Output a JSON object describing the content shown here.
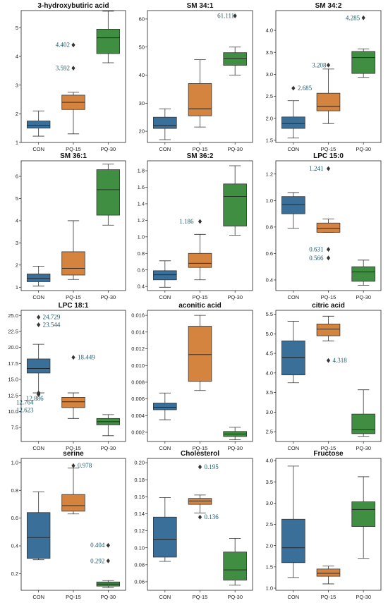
{
  "colors": {
    "CON": "#3a6f99",
    "PQ-15": "#d5843f",
    "PQ-30": "#3f8e41",
    "annotation": "#1f5a68"
  },
  "chart_data": [
    {
      "type": "box",
      "title": "3-hydroxybutiric acid",
      "categories": [
        "CON",
        "PQ-15",
        "PQ-30"
      ],
      "ylim": [
        1.0,
        5.6
      ],
      "yticks": [
        "1",
        "2",
        "3",
        "4",
        "5"
      ],
      "boxes": [
        {
          "min": 1.22,
          "q1": 1.5,
          "median": 1.6,
          "q3": 1.75,
          "max": 2.1
        },
        {
          "min": 1.3,
          "q1": 2.15,
          "median": 2.4,
          "q3": 2.65,
          "max": 2.75
        },
        {
          "min": 3.78,
          "q1": 4.1,
          "median": 4.65,
          "q3": 4.95,
          "max": 5.58
        }
      ],
      "outliers": [
        {
          "category": "PQ-15",
          "value": 4.402,
          "label": "4.402"
        },
        {
          "category": "PQ-15",
          "value": 3.592,
          "label": "3.592"
        }
      ]
    },
    {
      "type": "box",
      "title": "SM 34:1",
      "categories": [
        "CON",
        "PQ-15",
        "PQ-30"
      ],
      "ylim": [
        16,
        63
      ],
      "yticks": [
        "20",
        "30",
        "40",
        "50",
        "60"
      ],
      "boxes": [
        {
          "min": 17.0,
          "q1": 21.0,
          "median": 22.0,
          "q3": 25.0,
          "max": 28.0
        },
        {
          "min": 21.5,
          "q1": 25.5,
          "median": 28.0,
          "q3": 37.0,
          "max": 45.5
        },
        {
          "min": 40.0,
          "q1": 43.5,
          "median": 46.0,
          "q3": 48.0,
          "max": 50.0
        }
      ],
      "outliers": [
        {
          "category": "PQ-30",
          "value": 61.111,
          "label": "61.111"
        }
      ]
    },
    {
      "type": "box",
      "title": "SM 34:2",
      "categories": [
        "CON",
        "PQ-15",
        "PQ-30"
      ],
      "ylim": [
        1.45,
        4.45
      ],
      "yticks": [
        "1.5",
        "2.0",
        "2.5",
        "3.0",
        "3.5",
        "4.0"
      ],
      "boxes": [
        {
          "min": 1.55,
          "q1": 1.77,
          "median": 1.88,
          "q3": 2.03,
          "max": 2.4
        },
        {
          "min": 1.88,
          "q1": 2.17,
          "median": 2.27,
          "q3": 2.57,
          "max": 3.12
        },
        {
          "min": 2.93,
          "q1": 3.02,
          "median": 3.38,
          "q3": 3.52,
          "max": 3.58
        }
      ],
      "outliers": [
        {
          "category": "CON",
          "value": 2.685,
          "label": "2.685"
        },
        {
          "category": "PQ-15",
          "value": 3.208,
          "label": "3.208"
        },
        {
          "category": "PQ-30",
          "value": 4.285,
          "label": "4.285"
        }
      ]
    },
    {
      "type": "box",
      "title": "SM 36:1",
      "categories": [
        "CON",
        "PQ-15",
        "PQ-30"
      ],
      "ylim": [
        0.85,
        6.7
      ],
      "yticks": [
        "1",
        "2",
        "3",
        "4",
        "5",
        "6"
      ],
      "boxes": [
        {
          "min": 1.05,
          "q1": 1.25,
          "median": 1.4,
          "q3": 1.6,
          "max": 1.95
        },
        {
          "min": 1.35,
          "q1": 1.55,
          "median": 1.85,
          "q3": 2.6,
          "max": 4.0
        },
        {
          "min": 3.8,
          "q1": 4.25,
          "median": 5.4,
          "q3": 6.3,
          "max": 6.55
        }
      ],
      "outliers": []
    },
    {
      "type": "box",
      "title": "SM 36:2",
      "categories": [
        "CON",
        "PQ-15",
        "PQ-30"
      ],
      "ylim": [
        0.35,
        1.92
      ],
      "yticks": [
        "0.4",
        "0.6",
        "0.8",
        "1.0",
        "1.2",
        "1.4",
        "1.6",
        "1.8"
      ],
      "boxes": [
        {
          "min": 0.39,
          "q1": 0.48,
          "median": 0.54,
          "q3": 0.59,
          "max": 0.71
        },
        {
          "min": 0.48,
          "q1": 0.63,
          "median": 0.68,
          "q3": 0.8,
          "max": 1.03
        },
        {
          "min": 1.02,
          "q1": 1.13,
          "median": 1.49,
          "q3": 1.64,
          "max": 1.86
        }
      ],
      "outliers": [
        {
          "category": "PQ-15",
          "value": 1.186,
          "label": "1.186"
        }
      ]
    },
    {
      "type": "box",
      "title": "LPC 15:0",
      "categories": [
        "CON",
        "PQ-15",
        "PQ-30"
      ],
      "ylim": [
        0.32,
        1.3
      ],
      "yticks": [
        "0.4",
        "0.6",
        "0.8",
        "1.0",
        "1.2"
      ],
      "boxes": [
        {
          "min": 0.79,
          "q1": 0.9,
          "median": 0.97,
          "q3": 1.03,
          "max": 1.06
        },
        {
          "min": 0.76,
          "q1": 0.76,
          "median": 0.79,
          "q3": 0.83,
          "max": 0.86
        },
        {
          "min": 0.36,
          "q1": 0.39,
          "median": 0.46,
          "q3": 0.5,
          "max": 0.55
        }
      ],
      "outliers": [
        {
          "category": "PQ-15",
          "value": 1.241,
          "label": "1.241"
        },
        {
          "category": "PQ-15",
          "value": 0.631,
          "label": "0.631"
        },
        {
          "category": "PQ-15",
          "value": 0.566,
          "label": "0.566"
        }
      ]
    },
    {
      "type": "box",
      "title": "LPC 18:1",
      "categories": [
        "CON",
        "PQ-15",
        "PQ-30"
      ],
      "ylim": [
        5.3,
        25.8
      ],
      "yticks": [
        "7.5",
        "10.0",
        "12.5",
        "15.0",
        "17.5",
        "20.0",
        "22.5",
        "25.0"
      ],
      "boxes": [
        {
          "min": 12.9,
          "q1": 16.0,
          "median": 16.7,
          "q3": 18.2,
          "max": 20.5
        },
        {
          "min": 8.9,
          "q1": 10.6,
          "median": 11.5,
          "q3": 12.2,
          "max": 12.9
        },
        {
          "min": 6.2,
          "q1": 7.9,
          "median": 8.4,
          "q3": 8.9,
          "max": 9.5
        }
      ],
      "outliers": [
        {
          "category": "CON",
          "value": 24.729,
          "label": "24.729"
        },
        {
          "category": "CON",
          "value": 23.544,
          "label": "23.544"
        },
        {
          "category": "PQ-15",
          "value": 18.449,
          "label": "18.449"
        },
        {
          "category": "CON",
          "value": 12.886,
          "label": "12.886"
        },
        {
          "category": "CON",
          "value": 12.764,
          "label": "12.764"
        },
        {
          "category": "CON",
          "value": 12.623,
          "label": "12.623"
        }
      ]
    },
    {
      "type": "box",
      "title": "aconitic acid",
      "categories": [
        "CON",
        "PQ-15",
        "PQ-30"
      ],
      "ylim": [
        0.0009,
        0.0166
      ],
      "yticks": [
        "0.002",
        "0.004",
        "0.006",
        "0.008",
        "0.010",
        "0.012",
        "0.014",
        "0.016"
      ],
      "boxes": [
        {
          "min": 0.0035,
          "q1": 0.0047,
          "median": 0.005,
          "q3": 0.0055,
          "max": 0.0067
        },
        {
          "min": 0.007,
          "q1": 0.0081,
          "median": 0.0113,
          "q3": 0.0147,
          "max": 0.016
        },
        {
          "min": 0.0011,
          "q1": 0.0015,
          "median": 0.0018,
          "q3": 0.0021,
          "max": 0.0026
        }
      ],
      "outliers": []
    },
    {
      "type": "box",
      "title": "citric acid",
      "categories": [
        "CON",
        "PQ-15",
        "PQ-30"
      ],
      "ylim": [
        2.25,
        5.6
      ],
      "yticks": [
        "2.5",
        "3.0",
        "3.5",
        "4.0",
        "4.5",
        "5.0",
        "5.5"
      ],
      "boxes": [
        {
          "min": 3.75,
          "q1": 3.95,
          "median": 4.4,
          "q3": 4.82,
          "max": 5.32
        },
        {
          "min": 4.82,
          "q1": 4.95,
          "median": 5.12,
          "q3": 5.25,
          "max": 5.45
        },
        {
          "min": 2.38,
          "q1": 2.45,
          "median": 2.55,
          "q3": 2.95,
          "max": 3.57
        }
      ],
      "outliers": [
        {
          "category": "PQ-15",
          "value": 4.318,
          "label": "4.318"
        }
      ]
    },
    {
      "type": "box",
      "title": "serine",
      "categories": [
        "CON",
        "PQ-15",
        "PQ-30"
      ],
      "ylim": [
        0.08,
        1.03
      ],
      "yticks": [
        "0.2",
        "0.4",
        "0.6",
        "0.8",
        "1.0"
      ],
      "boxes": [
        {
          "min": 0.3,
          "q1": 0.31,
          "median": 0.46,
          "q3": 0.64,
          "max": 0.79
        },
        {
          "min": 0.63,
          "q1": 0.65,
          "median": 0.69,
          "q3": 0.77,
          "max": 0.96
        },
        {
          "min": 0.1,
          "q1": 0.11,
          "median": 0.125,
          "q3": 0.14,
          "max": 0.15
        }
      ],
      "outliers": [
        {
          "category": "PQ-15",
          "value": 0.978,
          "label": "0.978"
        },
        {
          "category": "PQ-30",
          "value": 0.404,
          "label": "0.404"
        },
        {
          "category": "PQ-30",
          "value": 0.292,
          "label": "0.292"
        }
      ]
    },
    {
      "type": "box",
      "title": "Cholesterol",
      "categories": [
        "CON",
        "PQ-15",
        "PQ-30"
      ],
      "ylim": [
        0.05,
        0.205
      ],
      "yticks": [
        "0.06",
        "0.08",
        "0.10",
        "0.12",
        "0.14",
        "0.16",
        "0.18",
        "0.20"
      ],
      "boxes": [
        {
          "min": 0.084,
          "q1": 0.089,
          "median": 0.11,
          "q3": 0.136,
          "max": 0.159
        },
        {
          "min": 0.141,
          "q1": 0.151,
          "median": 0.155,
          "q3": 0.158,
          "max": 0.162
        },
        {
          "min": 0.056,
          "q1": 0.062,
          "median": 0.074,
          "q3": 0.095,
          "max": 0.111
        }
      ],
      "outliers": [
        {
          "category": "PQ-15",
          "value": 0.195,
          "label": "0.195"
        },
        {
          "category": "PQ-15",
          "value": 0.136,
          "label": "0.136"
        }
      ]
    },
    {
      "type": "box",
      "title": "Fructose",
      "categories": [
        "CON",
        "PQ-15",
        "PQ-30"
      ],
      "ylim": [
        0.95,
        4.05
      ],
      "yticks": [
        "1.0",
        "1.5",
        "2.0",
        "2.5",
        "3.0",
        "3.5",
        "4.0"
      ],
      "boxes": [
        {
          "min": 1.25,
          "q1": 1.6,
          "median": 1.95,
          "q3": 2.62,
          "max": 3.87
        },
        {
          "min": 1.1,
          "q1": 1.28,
          "median": 1.35,
          "q3": 1.45,
          "max": 1.52
        },
        {
          "min": 1.7,
          "q1": 2.45,
          "median": 2.85,
          "q3": 3.03,
          "max": 3.62
        }
      ],
      "outliers": []
    }
  ]
}
